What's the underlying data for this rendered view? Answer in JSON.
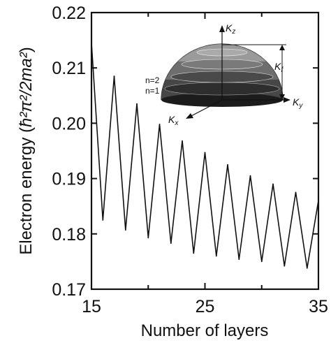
{
  "chart_data": {
    "type": "line",
    "xlabel": "Number of layers",
    "ylabel_prefix": "Electron energy (",
    "ylabel_units": "ħ²π²/2ma²",
    "ylabel_suffix": ")",
    "xlim": [
      15,
      35
    ],
    "ylim": [
      0.17,
      0.22
    ],
    "x_ticks": [
      15,
      25,
      35
    ],
    "x_tick_labels": [
      "15",
      "25",
      "35"
    ],
    "y_ticks": [
      0.17,
      0.18,
      0.19,
      0.2,
      0.21,
      0.22
    ],
    "y_tick_labels": [
      "0.17",
      "0.18",
      "0.19",
      "0.20",
      "0.21",
      "0.22"
    ],
    "grid": false,
    "series": [
      {
        "color": "#111111",
        "x": [
          15,
          16,
          17,
          18,
          19,
          20,
          21,
          22,
          23,
          24,
          25,
          26,
          27,
          28,
          29,
          30,
          31,
          32,
          33,
          34,
          35
        ],
        "y": [
          0.2145,
          0.1825,
          0.2085,
          0.1807,
          0.2035,
          0.1793,
          0.1998,
          0.1783,
          0.1968,
          0.1765,
          0.1947,
          0.176,
          0.1925,
          0.1754,
          0.1905,
          0.175,
          0.189,
          0.1742,
          0.1875,
          0.1738,
          0.186
        ]
      }
    ]
  },
  "inset": {
    "axis_labels": {
      "kz": "K",
      "kz_sub": "z",
      "ky": "K",
      "ky_sub": "y",
      "kx": "K",
      "kx_sub": "x",
      "kf": "K",
      "kf_sub": "f"
    },
    "band_labels": [
      "n=2",
      "n=1"
    ]
  }
}
